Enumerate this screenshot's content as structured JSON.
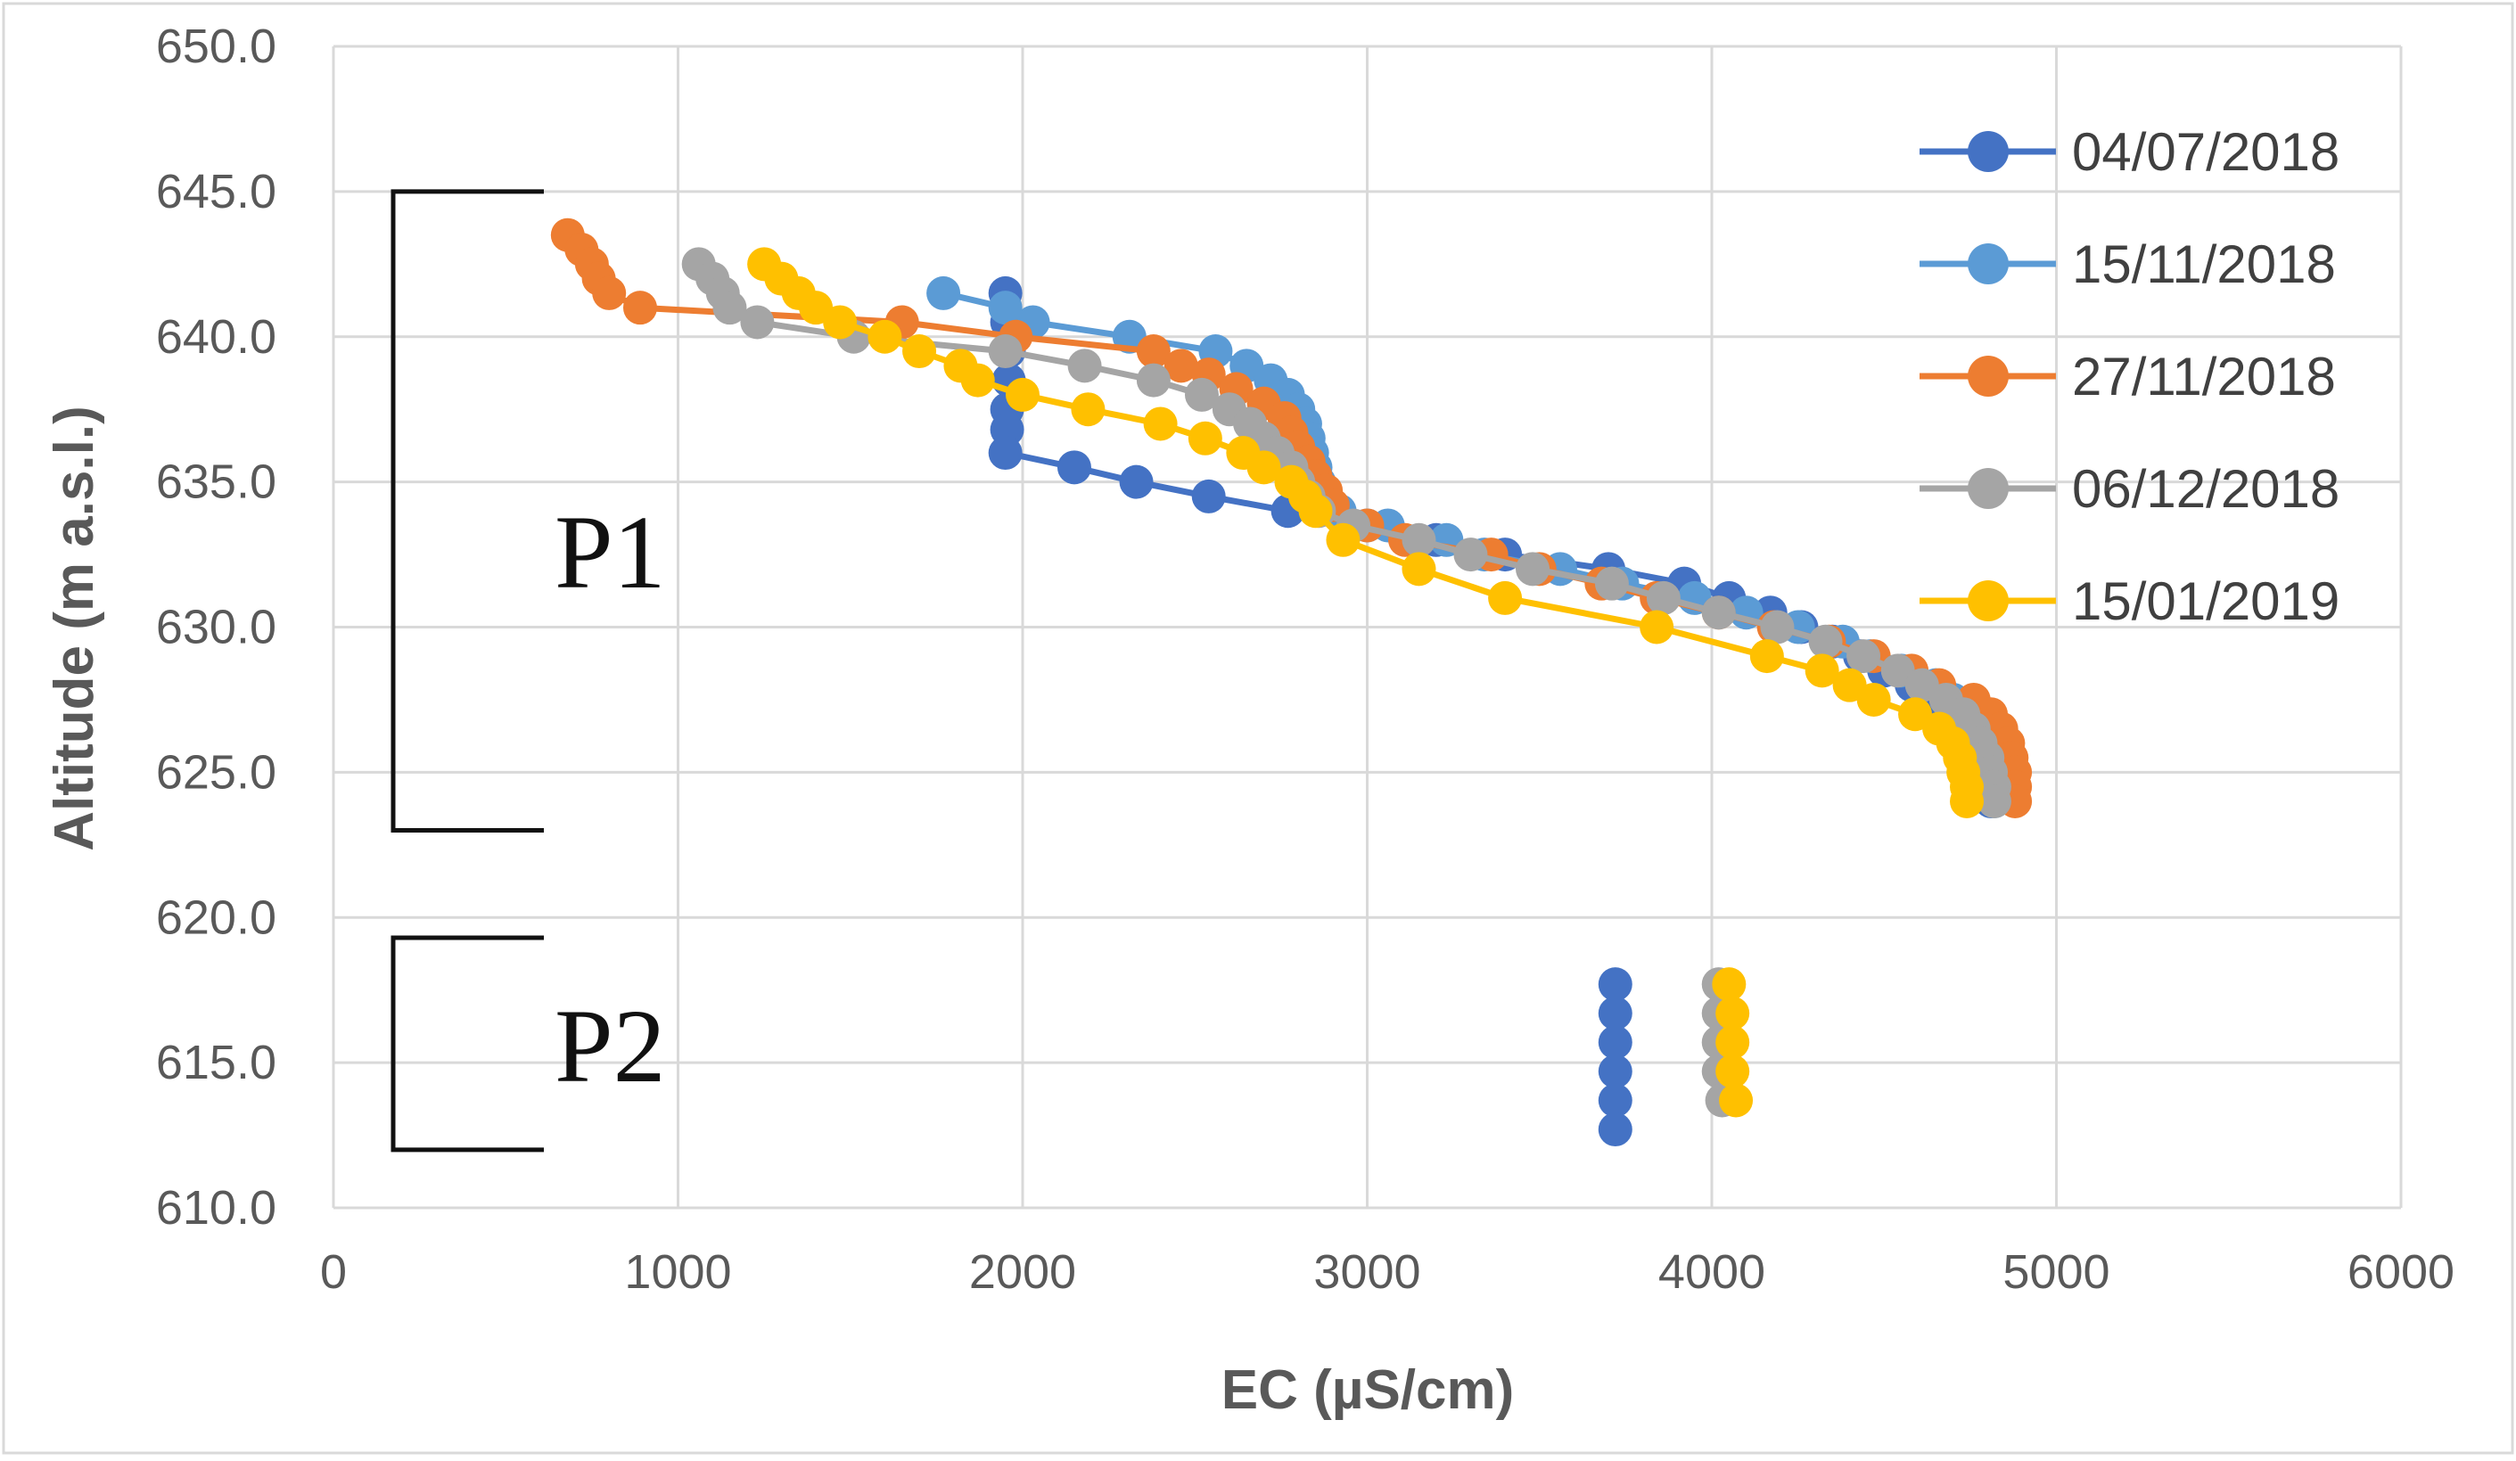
{
  "chart_data": {
    "type": "scatter",
    "title": "",
    "xlabel": "EC (µS/cm)",
    "ylabel": "Altitude (m a.s.l.)",
    "xlim": [
      0,
      6000
    ],
    "ylim": [
      610,
      650
    ],
    "x_ticks": [
      0,
      1000,
      2000,
      3000,
      4000,
      5000,
      6000
    ],
    "y_ticks": [
      "610.0",
      "615.0",
      "620.0",
      "625.0",
      "630.0",
      "635.0",
      "640.0",
      "645.0",
      "650.0"
    ],
    "grid": true,
    "legend_position": "top-right",
    "lines_connect_points": true,
    "series": [
      {
        "name": "04/07/2018",
        "color": "#4472C4",
        "points": [
          [
            1950,
            641.5
          ],
          [
            1955,
            640.5
          ],
          [
            1960,
            639.5
          ],
          [
            1960,
            638.5
          ],
          [
            1955,
            637.5
          ],
          [
            1955,
            636.8
          ],
          [
            1950,
            636.0
          ],
          [
            2150,
            635.5
          ],
          [
            2330,
            635.0
          ],
          [
            2540,
            634.5
          ],
          [
            2770,
            634.0
          ],
          [
            3000,
            633.5
          ],
          [
            3200,
            633.0
          ],
          [
            3400,
            632.5
          ],
          [
            3700,
            632.0
          ],
          [
            3920,
            631.5
          ],
          [
            4050,
            631.0
          ],
          [
            4170,
            630.5
          ],
          [
            4260,
            630.0
          ],
          [
            4350,
            629.5
          ],
          [
            4430,
            629.0
          ],
          [
            4500,
            628.5
          ],
          [
            4580,
            628.0
          ],
          [
            4650,
            627.5
          ],
          [
            4700,
            627.0
          ],
          [
            4740,
            626.5
          ],
          [
            4770,
            626.0
          ],
          [
            4790,
            625.5
          ],
          [
            4800,
            625.0
          ],
          [
            4810,
            624.5
          ],
          [
            4810,
            624.0
          ]
        ],
        "points_p2": [
          [
            3720,
            617.7
          ],
          [
            3720,
            616.7
          ],
          [
            3720,
            615.7
          ],
          [
            3720,
            614.7
          ],
          [
            3720,
            613.7
          ],
          [
            3720,
            612.7
          ]
        ]
      },
      {
        "name": "15/11/2018",
        "color": "#5B9BD5",
        "points": [
          [
            1770,
            641.5
          ],
          [
            1950,
            641.0
          ],
          [
            2030,
            640.5
          ],
          [
            2310,
            640.0
          ],
          [
            2560,
            639.5
          ],
          [
            2650,
            639.0
          ],
          [
            2720,
            638.5
          ],
          [
            2770,
            638.0
          ],
          [
            2800,
            637.5
          ],
          [
            2820,
            637.0
          ],
          [
            2830,
            636.5
          ],
          [
            2840,
            636.0
          ],
          [
            2850,
            635.5
          ],
          [
            2860,
            635.0
          ],
          [
            2880,
            634.5
          ],
          [
            2920,
            634.0
          ],
          [
            3060,
            633.5
          ],
          [
            3230,
            633.0
          ],
          [
            3340,
            632.5
          ],
          [
            3560,
            632.0
          ],
          [
            3740,
            631.5
          ],
          [
            3950,
            631.0
          ],
          [
            4100,
            630.5
          ],
          [
            4250,
            630.0
          ],
          [
            4380,
            629.5
          ],
          [
            4460,
            629.0
          ],
          [
            4550,
            628.5
          ],
          [
            4650,
            628.0
          ],
          [
            4700,
            627.5
          ],
          [
            4750,
            627.0
          ],
          [
            4790,
            626.5
          ],
          [
            4800,
            626.0
          ],
          [
            4810,
            625.5
          ],
          [
            4820,
            625.0
          ],
          [
            4820,
            624.5
          ],
          [
            4820,
            624.0
          ]
        ],
        "points_p2": []
      },
      {
        "name": "27/11/2018",
        "color": "#ED7D31",
        "points": [
          [
            680,
            643.5
          ],
          [
            720,
            643.0
          ],
          [
            750,
            642.5
          ],
          [
            770,
            642.0
          ],
          [
            800,
            641.5
          ],
          [
            890,
            641.0
          ],
          [
            1650,
            640.5
          ],
          [
            1980,
            640.0
          ],
          [
            2380,
            639.5
          ],
          [
            2460,
            639.0
          ],
          [
            2540,
            638.7
          ],
          [
            2620,
            638.2
          ],
          [
            2700,
            637.7
          ],
          [
            2760,
            637.2
          ],
          [
            2780,
            636.7
          ],
          [
            2800,
            636.2
          ],
          [
            2830,
            635.7
          ],
          [
            2850,
            635.2
          ],
          [
            2880,
            634.7
          ],
          [
            2900,
            634.2
          ],
          [
            3000,
            633.5
          ],
          [
            3110,
            633.0
          ],
          [
            3360,
            632.5
          ],
          [
            3500,
            632.0
          ],
          [
            3680,
            631.5
          ],
          [
            3840,
            631.0
          ],
          [
            4020,
            630.5
          ],
          [
            4180,
            630.0
          ],
          [
            4340,
            629.5
          ],
          [
            4470,
            629.0
          ],
          [
            4580,
            628.5
          ],
          [
            4660,
            628.0
          ],
          [
            4760,
            627.5
          ],
          [
            4810,
            627.0
          ],
          [
            4840,
            626.5
          ],
          [
            4860,
            626.0
          ],
          [
            4870,
            625.5
          ],
          [
            4880,
            625.0
          ],
          [
            4880,
            624.5
          ],
          [
            4880,
            624.0
          ]
        ],
        "points_p2": []
      },
      {
        "name": "06/12/2018",
        "color": "#A5A5A5",
        "points": [
          [
            1060,
            642.5
          ],
          [
            1100,
            642.0
          ],
          [
            1130,
            641.5
          ],
          [
            1150,
            641.0
          ],
          [
            1230,
            640.5
          ],
          [
            1510,
            640.0
          ],
          [
            1950,
            639.5
          ],
          [
            2180,
            639.0
          ],
          [
            2380,
            638.5
          ],
          [
            2520,
            638.0
          ],
          [
            2600,
            637.5
          ],
          [
            2660,
            637.0
          ],
          [
            2700,
            636.5
          ],
          [
            2740,
            636.0
          ],
          [
            2780,
            635.5
          ],
          [
            2800,
            635.0
          ],
          [
            2830,
            634.5
          ],
          [
            2860,
            634.0
          ],
          [
            2960,
            633.5
          ],
          [
            3150,
            633.0
          ],
          [
            3300,
            632.5
          ],
          [
            3480,
            632.0
          ],
          [
            3710,
            631.5
          ],
          [
            3860,
            631.0
          ],
          [
            4020,
            630.5
          ],
          [
            4190,
            630.0
          ],
          [
            4330,
            629.5
          ],
          [
            4440,
            629.0
          ],
          [
            4540,
            628.5
          ],
          [
            4610,
            628.0
          ],
          [
            4680,
            627.5
          ],
          [
            4730,
            627.0
          ],
          [
            4760,
            626.5
          ],
          [
            4780,
            626.0
          ],
          [
            4800,
            625.5
          ],
          [
            4810,
            625.0
          ],
          [
            4820,
            624.5
          ],
          [
            4820,
            624.0
          ]
        ],
        "points_p2": [
          [
            4020,
            617.7
          ],
          [
            4020,
            616.7
          ],
          [
            4020,
            615.7
          ],
          [
            4020,
            614.7
          ],
          [
            4030,
            613.7
          ]
        ]
      },
      {
        "name": "15/01/2019",
        "color": "#FFC000",
        "points": [
          [
            1250,
            642.5
          ],
          [
            1300,
            642.0
          ],
          [
            1350,
            641.5
          ],
          [
            1400,
            641.0
          ],
          [
            1470,
            640.5
          ],
          [
            1600,
            640.0
          ],
          [
            1700,
            639.5
          ],
          [
            1820,
            639.0
          ],
          [
            1870,
            638.5
          ],
          [
            2000,
            638.0
          ],
          [
            2190,
            637.5
          ],
          [
            2400,
            637.0
          ],
          [
            2530,
            636.5
          ],
          [
            2640,
            636.0
          ],
          [
            2700,
            635.5
          ],
          [
            2780,
            635.0
          ],
          [
            2820,
            634.5
          ],
          [
            2850,
            634.0
          ],
          [
            2930,
            633.0
          ],
          [
            3150,
            632.0
          ],
          [
            3400,
            631.0
          ],
          [
            3840,
            630.0
          ],
          [
            4160,
            629.0
          ],
          [
            4320,
            628.5
          ],
          [
            4400,
            628.0
          ],
          [
            4470,
            627.5
          ],
          [
            4590,
            627.0
          ],
          [
            4660,
            626.5
          ],
          [
            4700,
            626.0
          ],
          [
            4720,
            625.5
          ],
          [
            4730,
            625.0
          ],
          [
            4740,
            624.5
          ],
          [
            4740,
            624.0
          ]
        ],
        "points_p2": [
          [
            4050,
            617.7
          ],
          [
            4060,
            616.7
          ],
          [
            4060,
            615.7
          ],
          [
            4060,
            614.7
          ],
          [
            4070,
            613.7
          ]
        ]
      }
    ],
    "annotations": [
      {
        "label": "P1",
        "from": 623,
        "to": 645
      },
      {
        "label": "P2",
        "from": 612,
        "to": 619.3
      }
    ]
  }
}
